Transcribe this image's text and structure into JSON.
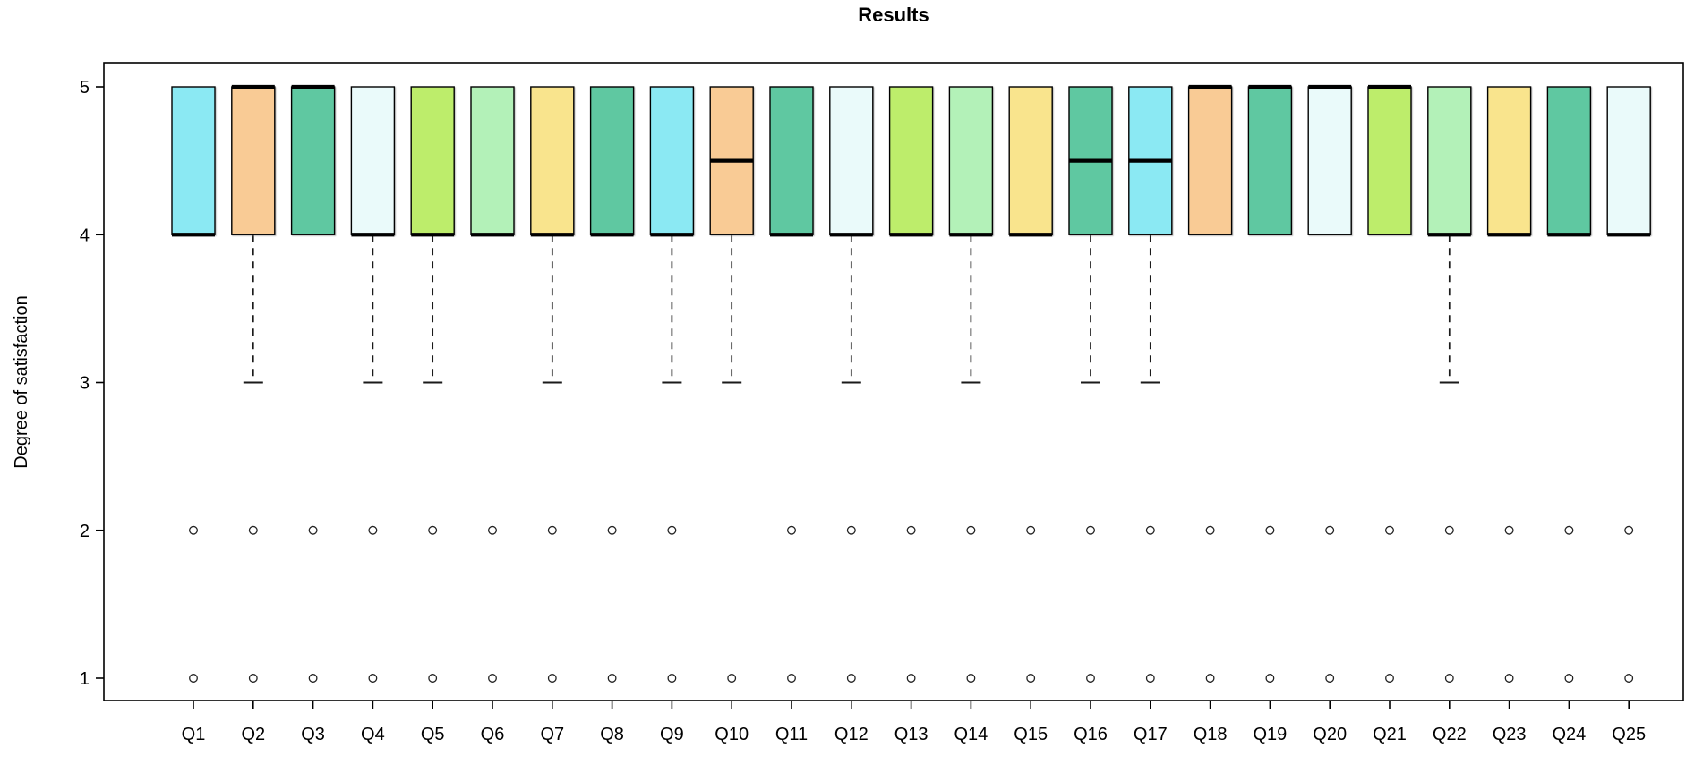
{
  "chart_data": {
    "type": "boxplot",
    "title": "Results",
    "ylabel": "Degree of satisfaction",
    "xlabel": "",
    "ylim": [
      1,
      5
    ],
    "yticks": [
      5,
      4,
      3,
      2,
      1
    ],
    "grid": "off",
    "legend": "none",
    "categories": [
      "Q1",
      "Q2",
      "Q3",
      "Q4",
      "Q5",
      "Q6",
      "Q7",
      "Q8",
      "Q9",
      "Q10",
      "Q11",
      "Q12",
      "Q13",
      "Q14",
      "Q15",
      "Q16",
      "Q17",
      "Q18",
      "Q19",
      "Q20",
      "Q21",
      "Q22",
      "Q23",
      "Q24",
      "Q25"
    ],
    "palette": {
      "cyan": "#8BE9F3",
      "orange": "#F9CB95",
      "teal": "#5FC8A1",
      "azure": "#EAFAFA",
      "yellow_green": "#BDED6B",
      "pale_green": "#B3F1B8",
      "yellow": "#F9E48D"
    },
    "boxes": [
      {
        "label": "Q1",
        "color": "#8BE9F3",
        "q1": 4,
        "q3": 5,
        "median": 4,
        "whisker_low": 4,
        "whisker_high": 5,
        "outliers": [
          2,
          1
        ]
      },
      {
        "label": "Q2",
        "color": "#F9CB95",
        "q1": 4,
        "q3": 5,
        "median": 5,
        "whisker_low": 3,
        "whisker_high": 5,
        "outliers": [
          2,
          1
        ]
      },
      {
        "label": "Q3",
        "color": "#5FC8A1",
        "q1": 4,
        "q3": 5,
        "median": 5,
        "whisker_low": 4,
        "whisker_high": 5,
        "outliers": [
          2,
          1
        ]
      },
      {
        "label": "Q4",
        "color": "#EAFAFA",
        "q1": 4,
        "q3": 5,
        "median": 4,
        "whisker_low": 3,
        "whisker_high": 5,
        "outliers": [
          2,
          1
        ]
      },
      {
        "label": "Q5",
        "color": "#BDED6B",
        "q1": 4,
        "q3": 5,
        "median": 4,
        "whisker_low": 3,
        "whisker_high": 5,
        "outliers": [
          2,
          1
        ]
      },
      {
        "label": "Q6",
        "color": "#B3F1B8",
        "q1": 4,
        "q3": 5,
        "median": 4,
        "whisker_low": 4,
        "whisker_high": 5,
        "outliers": [
          2,
          1
        ]
      },
      {
        "label": "Q7",
        "color": "#F9E48D",
        "q1": 4,
        "q3": 5,
        "median": 4,
        "whisker_low": 3,
        "whisker_high": 5,
        "outliers": [
          2,
          1
        ]
      },
      {
        "label": "Q8",
        "color": "#5FC8A1",
        "q1": 4,
        "q3": 5,
        "median": 4,
        "whisker_low": 4,
        "whisker_high": 5,
        "outliers": [
          2,
          1
        ]
      },
      {
        "label": "Q9",
        "color": "#8BE9F3",
        "q1": 4,
        "q3": 5,
        "median": 4,
        "whisker_low": 3,
        "whisker_high": 5,
        "outliers": [
          2,
          1
        ]
      },
      {
        "label": "Q10",
        "color": "#F9CB95",
        "q1": 4,
        "q3": 5,
        "median": 4.5,
        "whisker_low": 3,
        "whisker_high": 5,
        "outliers": [
          1
        ]
      },
      {
        "label": "Q11",
        "color": "#5FC8A1",
        "q1": 4,
        "q3": 5,
        "median": 4,
        "whisker_low": 4,
        "whisker_high": 5,
        "outliers": [
          2,
          1
        ]
      },
      {
        "label": "Q12",
        "color": "#EAFAFA",
        "q1": 4,
        "q3": 5,
        "median": 4,
        "whisker_low": 3,
        "whisker_high": 5,
        "outliers": [
          2,
          1
        ]
      },
      {
        "label": "Q13",
        "color": "#BDED6B",
        "q1": 4,
        "q3": 5,
        "median": 4,
        "whisker_low": 4,
        "whisker_high": 5,
        "outliers": [
          2,
          1
        ]
      },
      {
        "label": "Q14",
        "color": "#B3F1B8",
        "q1": 4,
        "q3": 5,
        "median": 4,
        "whisker_low": 3,
        "whisker_high": 5,
        "outliers": [
          2,
          1
        ]
      },
      {
        "label": "Q15",
        "color": "#F9E48D",
        "q1": 4,
        "q3": 5,
        "median": 4,
        "whisker_low": 4,
        "whisker_high": 5,
        "outliers": [
          2,
          1
        ]
      },
      {
        "label": "Q16",
        "color": "#5FC8A1",
        "q1": 4,
        "q3": 5,
        "median": 4.5,
        "whisker_low": 3,
        "whisker_high": 5,
        "outliers": [
          2,
          1
        ]
      },
      {
        "label": "Q17",
        "color": "#8BE9F3",
        "q1": 4,
        "q3": 5,
        "median": 4.5,
        "whisker_low": 3,
        "whisker_high": 5,
        "outliers": [
          2,
          1
        ]
      },
      {
        "label": "Q18",
        "color": "#F9CB95",
        "q1": 4,
        "q3": 5,
        "median": 5,
        "whisker_low": 4,
        "whisker_high": 5,
        "outliers": [
          2,
          1
        ]
      },
      {
        "label": "Q19",
        "color": "#5FC8A1",
        "q1": 4,
        "q3": 5,
        "median": 5,
        "whisker_low": 4,
        "whisker_high": 5,
        "outliers": [
          2,
          1
        ]
      },
      {
        "label": "Q20",
        "color": "#EAFAFA",
        "q1": 4,
        "q3": 5,
        "median": 5,
        "whisker_low": 4,
        "whisker_high": 5,
        "outliers": [
          2,
          1
        ]
      },
      {
        "label": "Q21",
        "color": "#BDED6B",
        "q1": 4,
        "q3": 5,
        "median": 5,
        "whisker_low": 4,
        "whisker_high": 5,
        "outliers": [
          2,
          1
        ]
      },
      {
        "label": "Q22",
        "color": "#B3F1B8",
        "q1": 4,
        "q3": 5,
        "median": 4,
        "whisker_low": 3,
        "whisker_high": 5,
        "outliers": [
          2,
          1
        ]
      },
      {
        "label": "Q23",
        "color": "#F9E48D",
        "q1": 4,
        "q3": 5,
        "median": 4,
        "whisker_low": 4,
        "whisker_high": 5,
        "outliers": [
          2,
          1
        ]
      },
      {
        "label": "Q24",
        "color": "#5FC8A1",
        "q1": 4,
        "q3": 5,
        "median": 4,
        "whisker_low": 4,
        "whisker_high": 5,
        "outliers": [
          2,
          1
        ]
      },
      {
        "label": "Q25",
        "color": "#EAFAFA",
        "q1": 4,
        "q3": 5,
        "median": 4,
        "whisker_low": 4,
        "whisker_high": 5,
        "outliers": [
          2,
          1
        ]
      }
    ]
  }
}
